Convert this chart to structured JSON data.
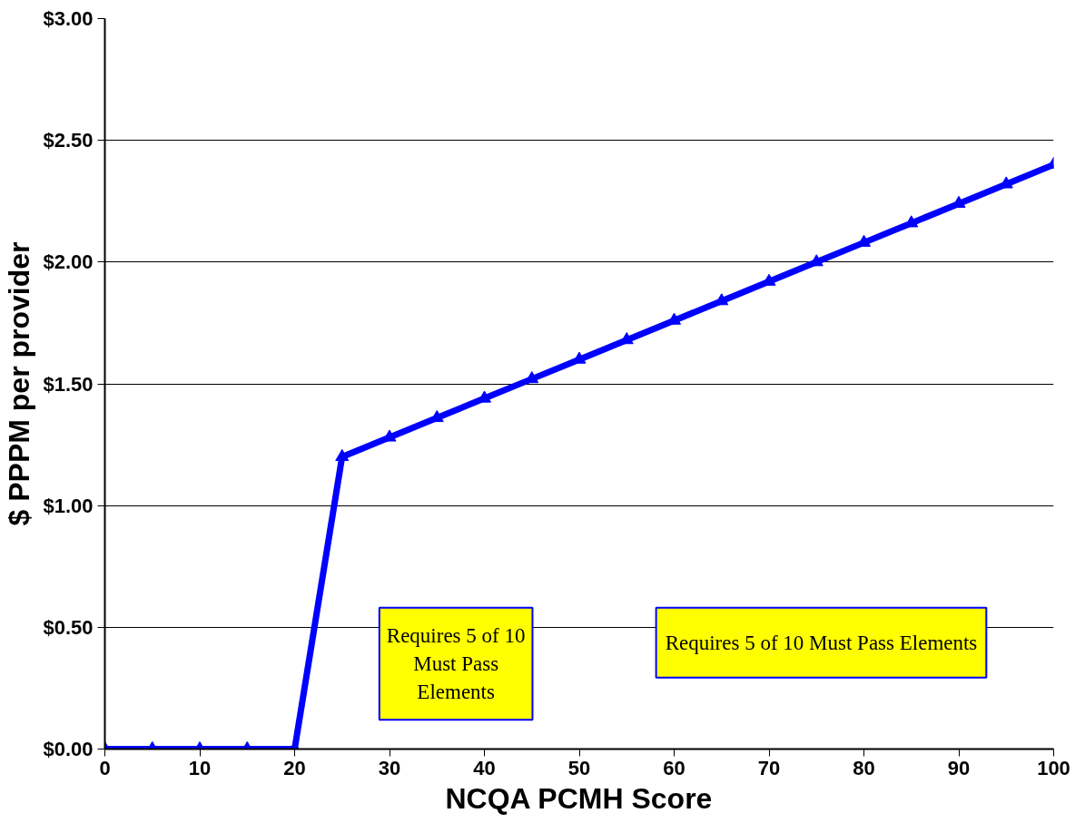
{
  "chart_data": {
    "type": "line",
    "xlabel": "NCQA PCMH Score",
    "ylabel": "$ PPPM per provider",
    "x": [
      0,
      5,
      10,
      15,
      20,
      25,
      30,
      35,
      40,
      45,
      50,
      55,
      60,
      65,
      70,
      75,
      80,
      85,
      90,
      95,
      100
    ],
    "series": [
      {
        "color": "#0000ff",
        "values": [
          0,
          0,
          0,
          0,
          0,
          1.2,
          1.28,
          1.36,
          1.44,
          1.52,
          1.6,
          1.68,
          1.76,
          1.84,
          1.92,
          2.0,
          2.08,
          2.16,
          2.24,
          2.32,
          2.4
        ]
      }
    ],
    "xlim": [
      0,
      100
    ],
    "ylim": [
      0,
      3
    ],
    "xticks": [
      0,
      10,
      20,
      30,
      40,
      50,
      60,
      70,
      80,
      90,
      100
    ],
    "yticks": [
      {
        "value": 0,
        "label": "$0.00"
      },
      {
        "value": 0.5,
        "label": "$0.50"
      },
      {
        "value": 1,
        "label": "$1.00"
      },
      {
        "value": 1.5,
        "label": "$1.50"
      },
      {
        "value": 2,
        "label": "$2.00"
      },
      {
        "value": 2.5,
        "label": "$2.50"
      },
      {
        "value": 3,
        "label": "$3.00"
      }
    ],
    "grid": "y",
    "marker": "triangle",
    "line_style": "solid",
    "annotations": [
      "Requires 5 of 10 Must Pass Elements",
      "Requires 5 of 10 Must Pass Elements"
    ]
  }
}
